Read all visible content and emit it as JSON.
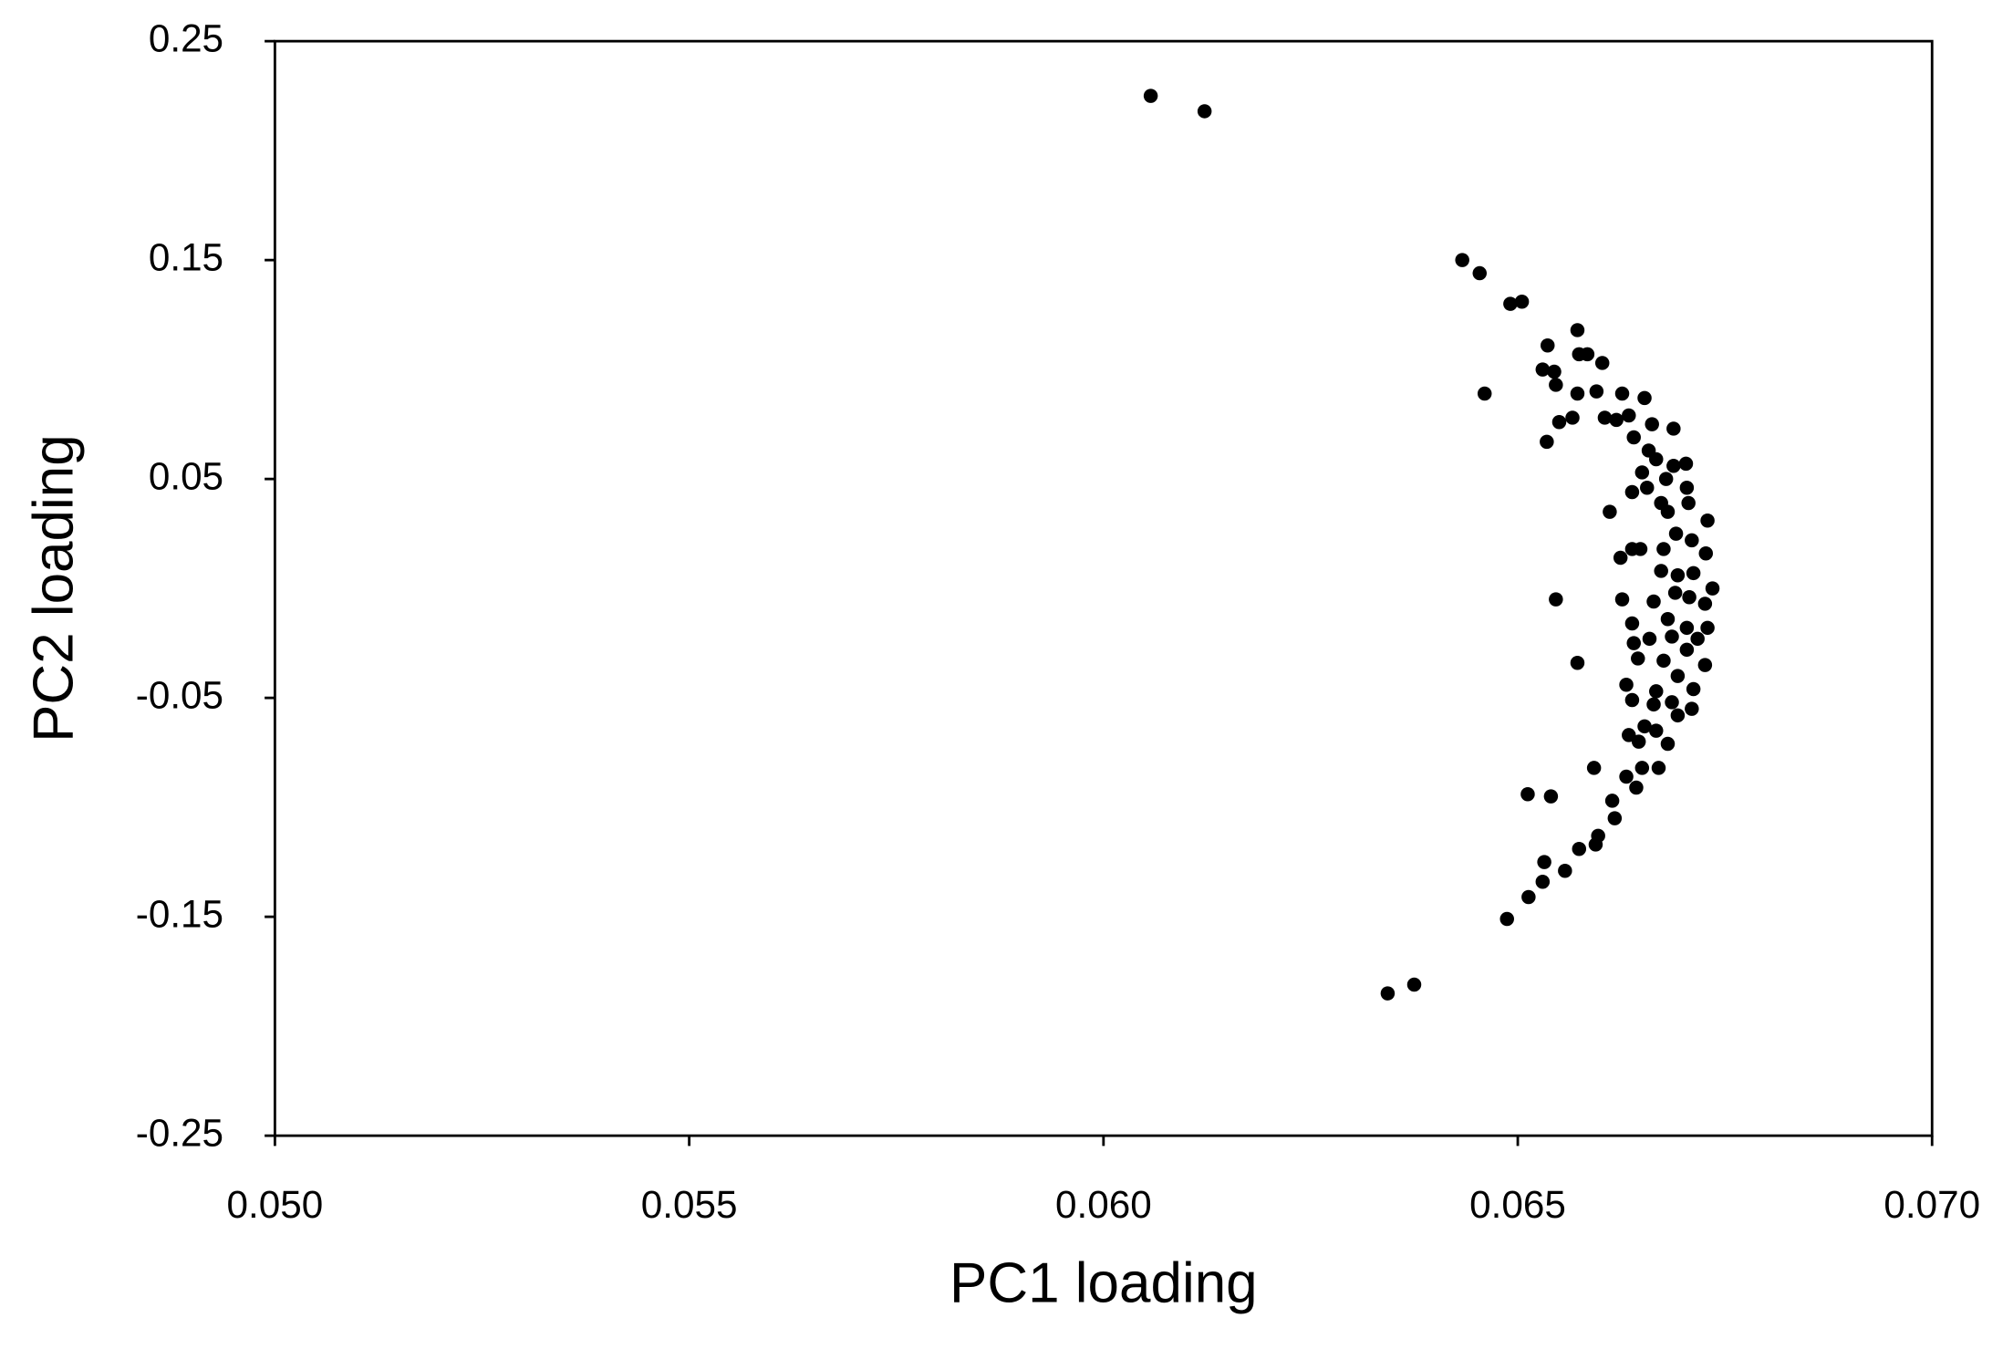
{
  "chart_data": {
    "type": "scatter",
    "x_label": "PC1 loading",
    "y_label": "PC2 loading",
    "color": "#000000",
    "xlim": [
      0.05,
      0.07
    ],
    "xticks": [
      {
        "value": 0.05,
        "label": "0.050"
      },
      {
        "value": 0.055,
        "label": "0.055"
      },
      {
        "value": 0.06,
        "label": "0.060"
      },
      {
        "value": 0.065,
        "label": "0.065"
      },
      {
        "value": 0.07,
        "label": "0.070"
      }
    ],
    "ylim": [
      -0.25,
      0.25
    ],
    "yticks": [
      0.25,
      0.15,
      0.05,
      -0.05,
      -0.15,
      -0.25
    ],
    "x": [
      0.06057,
      0.06122,
      0.06433,
      0.06454,
      0.06491,
      0.06505,
      0.0646,
      0.06536,
      0.06572,
      0.0653,
      0.06544,
      0.06546,
      0.06574,
      0.06584,
      0.06602,
      0.06572,
      0.06595,
      0.0655,
      0.06566,
      0.06535,
      0.06605,
      0.06626,
      0.06653,
      0.06619,
      0.06634,
      0.06662,
      0.06688,
      0.0664,
      0.06658,
      0.06667,
      0.0665,
      0.06688,
      0.06703,
      0.06638,
      0.06656,
      0.06679,
      0.06704,
      0.06611,
      0.06673,
      0.06681,
      0.06706,
      0.06729,
      0.06638,
      0.06648,
      0.06624,
      0.06676,
      0.06691,
      0.0671,
      0.06727,
      0.06673,
      0.06693,
      0.06712,
      0.06735,
      0.0669,
      0.06707,
      0.06546,
      0.06626,
      0.06664,
      0.06726,
      0.06638,
      0.06681,
      0.06729,
      0.06704,
      0.0664,
      0.06659,
      0.06686,
      0.06717,
      0.06704,
      0.06572,
      0.06645,
      0.06676,
      0.06726,
      0.06693,
      0.06631,
      0.06638,
      0.06667,
      0.06712,
      0.06664,
      0.06686,
      0.0671,
      0.06653,
      0.06693,
      0.06634,
      0.06667,
      0.06681,
      0.06646,
      0.06592,
      0.0665,
      0.0667,
      0.06631,
      0.06643,
      0.06512,
      0.0654,
      0.06614,
      0.06617,
      0.06597,
      0.06594,
      0.06574,
      0.06532,
      0.06557,
      0.0653,
      0.06513,
      0.06487,
      0.06375,
      0.06343
    ],
    "values": [
      0.225,
      0.218,
      0.15,
      0.144,
      0.13,
      0.131,
      0.089,
      0.111,
      0.118,
      0.1,
      0.099,
      0.093,
      0.107,
      0.107,
      0.103,
      0.089,
      0.09,
      0.076,
      0.078,
      0.067,
      0.078,
      0.089,
      0.087,
      0.077,
      0.079,
      0.075,
      0.073,
      0.069,
      0.063,
      0.059,
      0.053,
      0.056,
      0.057,
      0.044,
      0.046,
      0.05,
      0.046,
      0.035,
      0.039,
      0.035,
      0.039,
      0.031,
      0.018,
      0.018,
      0.014,
      0.018,
      0.025,
      0.022,
      0.016,
      0.008,
      0.006,
      0.007,
      0.0,
      -0.002,
      -0.004,
      -0.005,
      -0.005,
      -0.006,
      -0.007,
      -0.016,
      -0.014,
      -0.018,
      -0.018,
      -0.025,
      -0.023,
      -0.022,
      -0.023,
      -0.028,
      -0.034,
      -0.032,
      -0.033,
      -0.035,
      -0.04,
      -0.044,
      -0.051,
      -0.047,
      -0.046,
      -0.053,
      -0.052,
      -0.055,
      -0.063,
      -0.058,
      -0.067,
      -0.065,
      -0.071,
      -0.07,
      -0.082,
      -0.082,
      -0.082,
      -0.086,
      -0.091,
      -0.094,
      -0.095,
      -0.097,
      -0.105,
      -0.113,
      -0.117,
      -0.119,
      -0.125,
      -0.129,
      -0.134,
      -0.141,
      -0.151,
      -0.181,
      -0.185
    ]
  }
}
